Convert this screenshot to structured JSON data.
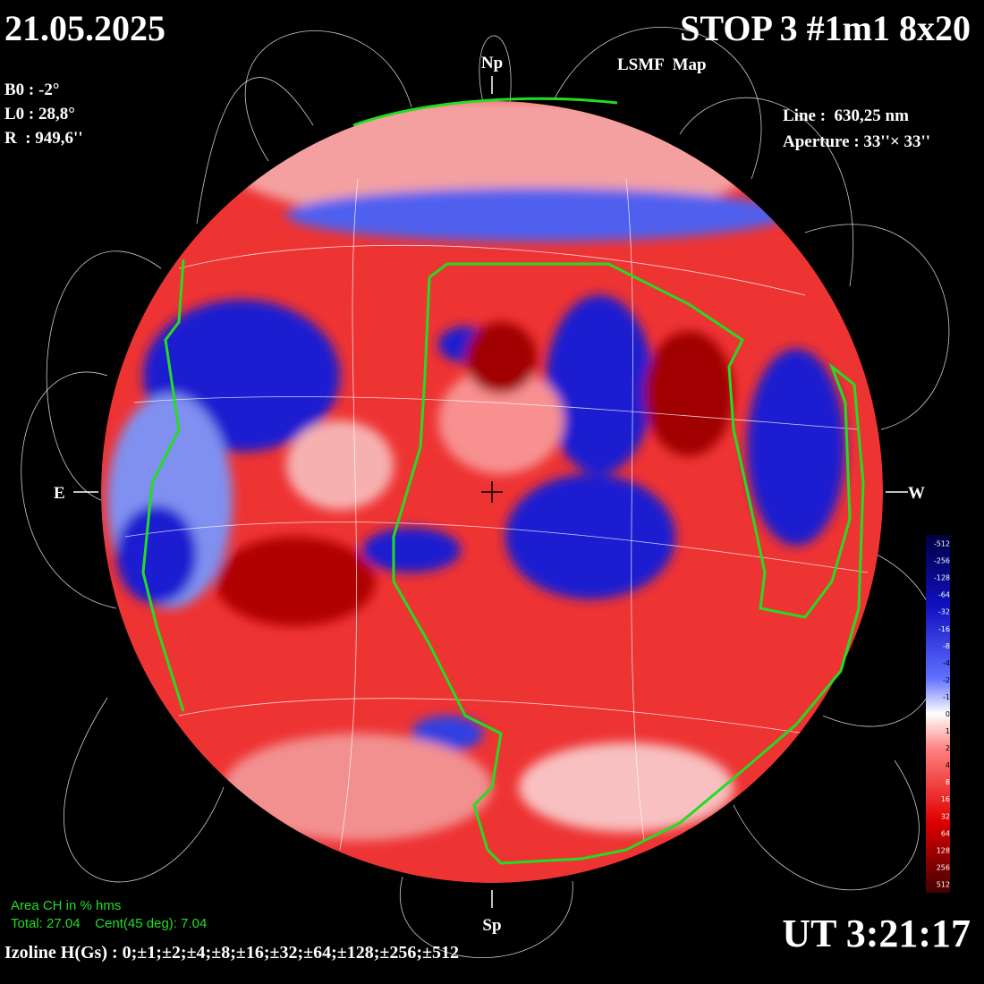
{
  "header": {
    "date": "21.05.2025",
    "title": "STOP 3 #1m1 8x20",
    "subtitle": "LSMF  Map"
  },
  "params_left": [
    "B0 : -2°",
    "L0 : 28,8°",
    "R  : 949,6''"
  ],
  "params_right": [
    "Line :  630,25 nm",
    "Aperture : 33''× 33''"
  ],
  "directions": {
    "north": "Np",
    "south": "Sp",
    "east": "E",
    "west": "W"
  },
  "colorbar": {
    "labels": [
      "-512",
      "-256",
      "-128",
      "-64",
      "-32",
      "-16",
      "-8",
      "-4",
      "-2",
      "-1",
      "0",
      "1",
      "2",
      "4",
      "8",
      "16",
      "32",
      "64",
      "128",
      "256",
      "512"
    ]
  },
  "footer": {
    "area_title": "Area CH in % hms",
    "area_values": "Total: 27.04    Cent(45 deg): 7.04",
    "izoline": "Izoline H(Gs) : 0;±1;±2;±4;±8;±16;±32;±64;±128;±256;±512",
    "time": "UT 3:21:17"
  }
}
